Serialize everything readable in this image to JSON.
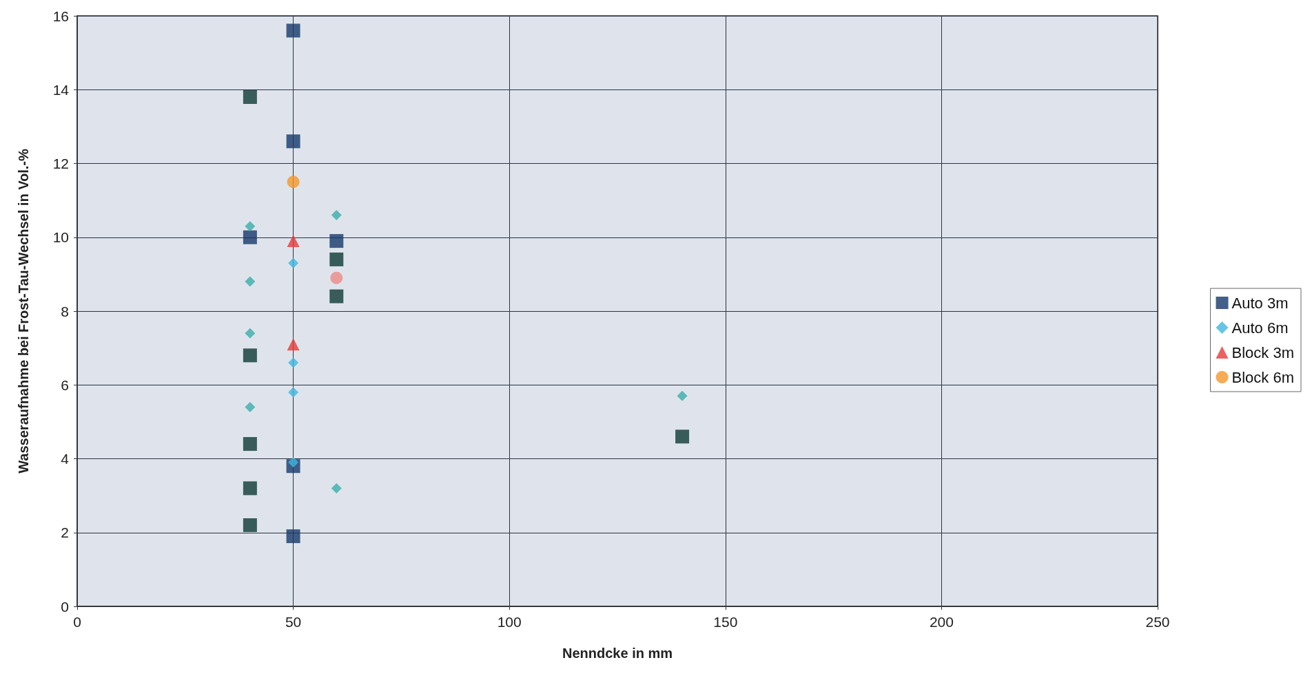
{
  "chart_data": {
    "type": "scatter",
    "xlabel": "Nenndcke in mm",
    "ylabel": "Wasseraufnahme bei Frost-Tau-Wechsel in Vol.-%",
    "xlim": [
      0,
      250
    ],
    "xticks": [
      0,
      50,
      100,
      150,
      200,
      250
    ],
    "ylim": [
      0,
      16
    ],
    "yticks": [
      0,
      2,
      4,
      6,
      8,
      10,
      12,
      14,
      16
    ],
    "grid": true,
    "legend": "right",
    "series": [
      {
        "name": "Auto 3m",
        "marker": "square",
        "color": "#15386a",
        "x": [
          40,
          40,
          40,
          40,
          40,
          40,
          50,
          50,
          50,
          50,
          60,
          60,
          60,
          140
        ],
        "values": [
          13.8,
          10.0,
          6.8,
          4.4,
          3.2,
          2.2,
          15.6,
          12.6,
          3.8,
          1.9,
          9.9,
          9.4,
          8.4,
          4.6
        ],
        "colors": [
          "#0e3a36",
          "#15386a",
          "#0e3a36",
          "#0e3a36",
          "#0e3a36",
          "#0e3a36",
          "#15386a",
          "#15386a",
          "#15386a",
          "#15386a",
          "#15386a",
          "#0e3a36",
          "#0e3a36",
          "#0e3a36"
        ]
      },
      {
        "name": "Auto 6m",
        "marker": "diamond",
        "color": "#3fb6e0",
        "x": [
          40,
          40,
          40,
          40,
          50,
          50,
          50,
          50,
          60,
          60,
          140
        ],
        "values": [
          10.3,
          8.8,
          7.4,
          5.4,
          9.3,
          6.6,
          5.8,
          3.9,
          10.6,
          3.2,
          5.7
        ],
        "colors": [
          "#3aaeaa",
          "#3aaeaa",
          "#3aaeaa",
          "#3aaeaa",
          "#3fb6e0",
          "#3fb6e0",
          "#3fb6e0",
          "#3fb6e0",
          "#3aaeaa",
          "#3aaeaa",
          "#3aaeaa"
        ]
      },
      {
        "name": "Block 3m",
        "marker": "triangle",
        "color": "#e8383a",
        "x": [
          50,
          50
        ],
        "values": [
          9.9,
          7.1
        ]
      },
      {
        "name": "Block 6m",
        "marker": "circle",
        "color": "#f5962a",
        "x": [
          50,
          60
        ],
        "values": [
          11.5,
          8.9
        ],
        "colors": [
          "#f5962a",
          "#ec8a8a"
        ]
      }
    ]
  }
}
